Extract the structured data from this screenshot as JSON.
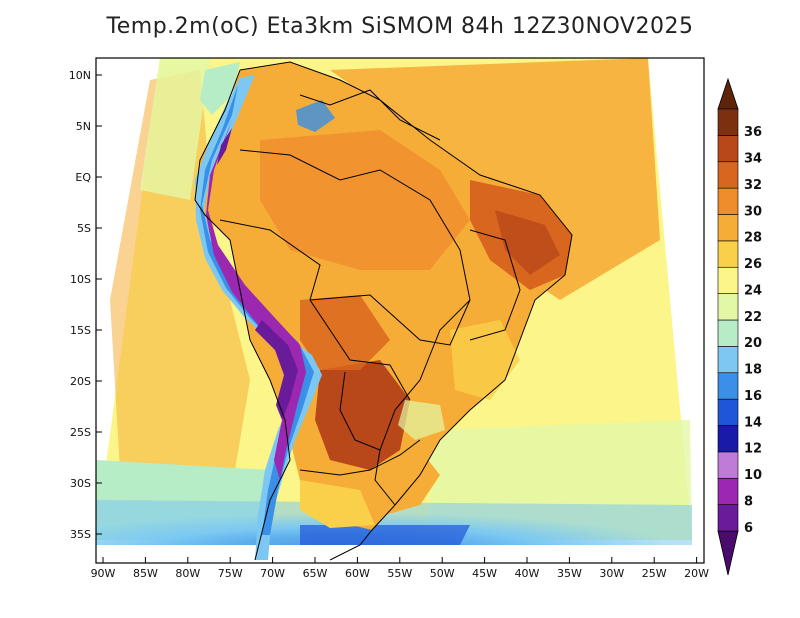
{
  "title": "Temp.2m(oC) Eta3km SiSMOM 84h 12Z30NOV2025",
  "map": {
    "variable": "2 m temperature",
    "units": "oC",
    "lat_labels": [
      "10N",
      "5N",
      "EQ",
      "5S",
      "10S",
      "15S",
      "20S",
      "25S",
      "30S",
      "35S"
    ],
    "lon_labels": [
      "90W",
      "85W",
      "80W",
      "75W",
      "70W",
      "65W",
      "60W",
      "55W",
      "50W",
      "45W",
      "40W",
      "35W",
      "30W",
      "25W",
      "20W"
    ]
  },
  "colorbar": {
    "levels": [
      "6",
      "8",
      "10",
      "12",
      "14",
      "16",
      "18",
      "20",
      "22",
      "24",
      "26",
      "28",
      "30",
      "32",
      "34",
      "36"
    ],
    "colors": [
      "#6a1b9a",
      "#9c27b0",
      "#c07ad8",
      "#1a1aa8",
      "#1f55d9",
      "#3a8fe6",
      "#7cc8f2",
      "#b6ecc6",
      "#e3f8a6",
      "#fbf58a",
      "#fad04a",
      "#f6ad38",
      "#ef8c2c",
      "#d9661f",
      "#b8481a",
      "#7c3010"
    ],
    "under_color": "#4a0a6e",
    "over_color": "#5e2308"
  }
}
